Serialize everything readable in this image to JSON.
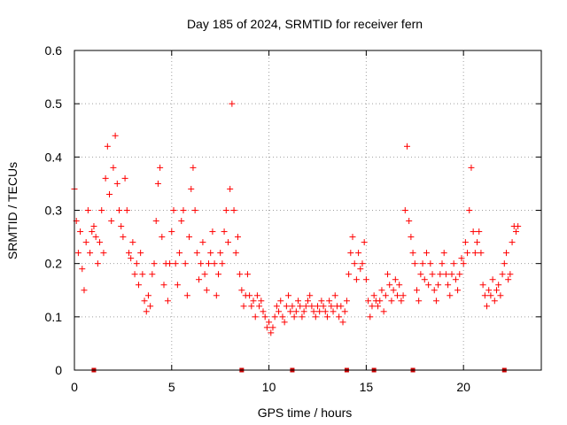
{
  "chart_data": {
    "type": "scatter",
    "title": "Day 185 of 2024, SRMTID for receiver fern",
    "xlabel": "GPS time / hours",
    "ylabel": "SRMTID / TECUs",
    "xlim": [
      0,
      24
    ],
    "ylim": [
      0,
      0.6
    ],
    "x_ticks": [
      0,
      5,
      10,
      15,
      20
    ],
    "x_tick_labels": [
      "0",
      "5",
      "10",
      "15",
      "20"
    ],
    "y_ticks": [
      0,
      0.1,
      0.2,
      0.3,
      0.4,
      0.5,
      0.6
    ],
    "y_tick_labels": [
      "0",
      "0.1",
      "0.2",
      "0.3",
      "0.4",
      "0.5",
      "0.6"
    ],
    "grid": true,
    "marker": "plus",
    "color": "#ff0000",
    "zero_line_points_x": [
      1.0,
      8.6,
      11.2,
      14.0,
      15.4,
      17.4,
      22.1
    ],
    "series": [
      {
        "name": "SRMTID",
        "x": [
          0.0,
          0.1,
          0.2,
          0.3,
          0.4,
          0.5,
          0.6,
          0.7,
          0.8,
          0.9,
          1.0,
          1.1,
          1.2,
          1.3,
          1.4,
          1.5,
          1.6,
          1.7,
          1.8,
          1.9,
          2.0,
          2.1,
          2.2,
          2.3,
          2.4,
          2.5,
          2.6,
          2.7,
          2.8,
          2.9,
          3.0,
          3.1,
          3.2,
          3.3,
          3.4,
          3.5,
          3.6,
          3.7,
          3.8,
          3.9,
          4.0,
          4.1,
          4.2,
          4.3,
          4.4,
          4.5,
          4.6,
          4.7,
          4.8,
          4.9,
          5.0,
          5.1,
          5.2,
          5.3,
          5.4,
          5.5,
          5.6,
          5.7,
          5.8,
          5.9,
          6.0,
          6.1,
          6.2,
          6.3,
          6.4,
          6.5,
          6.6,
          6.7,
          6.8,
          6.9,
          7.0,
          7.1,
          7.2,
          7.3,
          7.4,
          7.5,
          7.6,
          7.7,
          7.8,
          7.9,
          8.0,
          8.1,
          8.2,
          8.3,
          8.4,
          8.5,
          8.6,
          8.7,
          8.8,
          8.9,
          9.0,
          9.1,
          9.2,
          9.3,
          9.4,
          9.5,
          9.6,
          9.7,
          9.8,
          9.9,
          10.0,
          10.1,
          10.2,
          10.3,
          10.4,
          10.5,
          10.6,
          10.7,
          10.8,
          10.9,
          11.0,
          11.1,
          11.2,
          11.3,
          11.4,
          11.5,
          11.6,
          11.7,
          11.8,
          11.9,
          12.0,
          12.1,
          12.2,
          12.3,
          12.4,
          12.5,
          12.6,
          12.7,
          12.8,
          12.9,
          13.0,
          13.1,
          13.2,
          13.3,
          13.4,
          13.5,
          13.6,
          13.7,
          13.8,
          13.9,
          14.0,
          14.1,
          14.2,
          14.3,
          14.4,
          14.5,
          14.6,
          14.7,
          14.8,
          14.9,
          15.0,
          15.1,
          15.2,
          15.3,
          15.4,
          15.5,
          15.6,
          15.7,
          15.8,
          15.9,
          16.0,
          16.1,
          16.2,
          16.3,
          16.4,
          16.5,
          16.6,
          16.7,
          16.8,
          16.9,
          17.0,
          17.1,
          17.2,
          17.3,
          17.4,
          17.5,
          17.6,
          17.7,
          17.8,
          17.9,
          18.0,
          18.1,
          18.2,
          18.3,
          18.4,
          18.5,
          18.6,
          18.7,
          18.8,
          18.9,
          19.0,
          19.1,
          19.2,
          19.3,
          19.4,
          19.5,
          19.6,
          19.7,
          19.8,
          19.9,
          20.0,
          20.1,
          20.2,
          20.3,
          20.4,
          20.5,
          20.6,
          20.7,
          20.8,
          20.9,
          21.0,
          21.1,
          21.2,
          21.3,
          21.4,
          21.5,
          21.6,
          21.7,
          21.8,
          21.9,
          22.0,
          22.1,
          22.2,
          22.3,
          22.4,
          22.5,
          22.6,
          22.7,
          22.8
        ],
        "y": [
          0.34,
          0.28,
          0.22,
          0.26,
          0.19,
          0.15,
          0.24,
          0.3,
          0.22,
          0.26,
          0.27,
          0.25,
          0.2,
          0.24,
          0.3,
          0.22,
          0.36,
          0.42,
          0.33,
          0.28,
          0.38,
          0.44,
          0.35,
          0.3,
          0.27,
          0.25,
          0.36,
          0.3,
          0.22,
          0.21,
          0.24,
          0.18,
          0.2,
          0.16,
          0.22,
          0.18,
          0.13,
          0.11,
          0.14,
          0.12,
          0.18,
          0.2,
          0.28,
          0.35,
          0.38,
          0.25,
          0.16,
          0.2,
          0.13,
          0.2,
          0.26,
          0.3,
          0.2,
          0.16,
          0.22,
          0.28,
          0.3,
          0.2,
          0.14,
          0.25,
          0.34,
          0.38,
          0.3,
          0.22,
          0.17,
          0.2,
          0.24,
          0.18,
          0.15,
          0.2,
          0.22,
          0.26,
          0.2,
          0.14,
          0.18,
          0.22,
          0.2,
          0.26,
          0.3,
          0.24,
          0.34,
          0.5,
          0.3,
          0.22,
          0.25,
          0.18,
          0.15,
          0.12,
          0.14,
          0.18,
          0.14,
          0.12,
          0.13,
          0.1,
          0.14,
          0.12,
          0.13,
          0.11,
          0.1,
          0.08,
          0.09,
          0.07,
          0.08,
          0.1,
          0.12,
          0.11,
          0.13,
          0.1,
          0.09,
          0.12,
          0.14,
          0.11,
          0.12,
          0.1,
          0.11,
          0.13,
          0.12,
          0.1,
          0.11,
          0.12,
          0.13,
          0.14,
          0.12,
          0.11,
          0.1,
          0.12,
          0.11,
          0.13,
          0.12,
          0.11,
          0.1,
          0.13,
          0.12,
          0.11,
          0.14,
          0.12,
          0.1,
          0.12,
          0.09,
          0.11,
          0.13,
          0.18,
          0.22,
          0.25,
          0.2,
          0.17,
          0.22,
          0.19,
          0.2,
          0.24,
          0.17,
          0.13,
          0.1,
          0.12,
          0.14,
          0.13,
          0.12,
          0.13,
          0.15,
          0.11,
          0.14,
          0.18,
          0.16,
          0.13,
          0.15,
          0.17,
          0.14,
          0.16,
          0.13,
          0.14,
          0.3,
          0.42,
          0.28,
          0.25,
          0.22,
          0.2,
          0.15,
          0.13,
          0.18,
          0.2,
          0.17,
          0.22,
          0.16,
          0.2,
          0.18,
          0.15,
          0.13,
          0.16,
          0.18,
          0.2,
          0.22,
          0.18,
          0.16,
          0.14,
          0.18,
          0.2,
          0.17,
          0.15,
          0.18,
          0.21,
          0.2,
          0.24,
          0.22,
          0.3,
          0.38,
          0.26,
          0.22,
          0.24,
          0.26,
          0.22,
          0.16,
          0.14,
          0.12,
          0.15,
          0.14,
          0.17,
          0.13,
          0.15,
          0.16,
          0.14,
          0.18,
          0.2,
          0.22,
          0.17,
          0.18,
          0.24,
          0.27,
          0.26,
          0.27
        ]
      }
    ]
  }
}
